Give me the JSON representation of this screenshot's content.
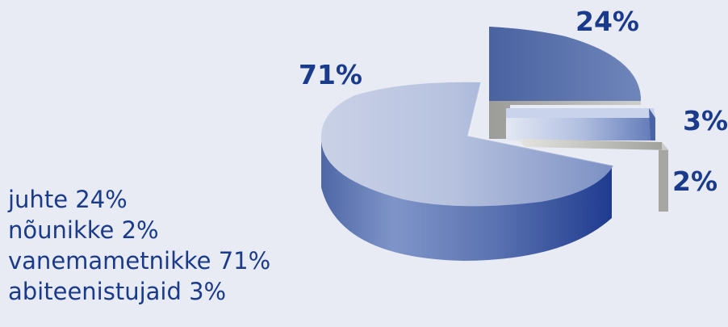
{
  "chart_data": {
    "type": "pie",
    "title": "",
    "slices": [
      {
        "label": "juhte",
        "value": 24,
        "display": "24%",
        "color": "#4f6aa2"
      },
      {
        "label": "nõunikke",
        "value": 2,
        "display": "2%",
        "color": "#b4b4b0"
      },
      {
        "label": "abiteenistujaid",
        "value": 3,
        "display": "3%",
        "color": "#8ea0cc"
      },
      {
        "label": "vanemametnikke",
        "value": 71,
        "display": "71%",
        "color": "#6f86bd"
      }
    ],
    "legend": [
      {
        "label": "juhte",
        "display": "24%"
      },
      {
        "label": "nõunikke",
        "display": "2%"
      },
      {
        "label": "vanemametnikke",
        "display": "71%"
      },
      {
        "label": "abiteenistujaid",
        "display": "3%"
      }
    ],
    "legend_position": "bottom-left",
    "style": "3d-exploded"
  }
}
